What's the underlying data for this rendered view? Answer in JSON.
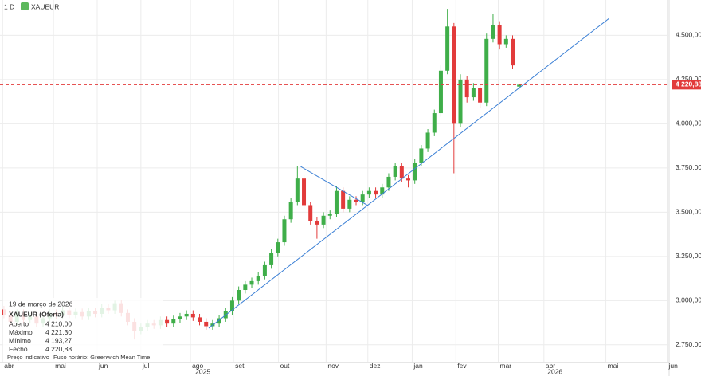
{
  "header": {
    "interval": "1 D",
    "symbol": "XAUEUR"
  },
  "info": {
    "date": "19 de março de 2026",
    "title": "XAUEUR (Oferta)",
    "rows": [
      [
        "Aberto",
        "4 210,00"
      ],
      [
        "Máximo",
        "4 221,30"
      ],
      [
        "Mínimo",
        "4 193,27"
      ],
      [
        "Fecho",
        "4 220,88"
      ]
    ],
    "footer": [
      "Preço indicativo",
      "Fuso horário: Greenwich Mean Time"
    ]
  },
  "chart_data": {
    "type": "candlestick",
    "up_color": "#3fae49",
    "down_color": "#e23b3b",
    "open": [
      2950,
      2920,
      2880,
      2930,
      2890,
      2910,
      2870,
      2900,
      2930,
      2915,
      2945,
      2920,
      2935,
      2910,
      2940,
      2925,
      2960,
      2945,
      2985,
      2930,
      2880,
      2830,
      2850,
      2870,
      2860,
      2890,
      2870,
      2895,
      2910,
      2925,
      2905,
      2880,
      2855,
      2870,
      2900,
      2940,
      3000,
      3060,
      3090,
      3110,
      3140,
      3200,
      3270,
      3330,
      3460,
      3560,
      3690,
      3540,
      3450,
      3430,
      3480,
      3490,
      3620,
      3520,
      3570,
      3560,
      3600,
      3620,
      3600,
      3640,
      3700,
      3760,
      3690,
      3680,
      3780,
      3860,
      3950,
      4060,
      4300,
      4550,
      4000,
      4250,
      4150,
      4200,
      4120,
      4480,
      4560,
      4450,
      4480,
      4210
    ],
    "high": [
      2970,
      2940,
      2950,
      2950,
      2930,
      2930,
      2920,
      2950,
      2950,
      2965,
      2965,
      2955,
      2955,
      2960,
      2960,
      2980,
      2980,
      3000,
      3005,
      2950,
      2900,
      2870,
      2890,
      2890,
      2910,
      2910,
      2915,
      2930,
      2945,
      2945,
      2925,
      2900,
      2890,
      2920,
      2960,
      3020,
      3080,
      3110,
      3130,
      3160,
      3220,
      3290,
      3350,
      3480,
      3580,
      3760,
      3710,
      3560,
      3470,
      3500,
      3510,
      3650,
      3640,
      3590,
      3590,
      3620,
      3640,
      3640,
      3660,
      3720,
      3780,
      3780,
      3710,
      3800,
      3880,
      3970,
      4080,
      4330,
      4650,
      4570,
      4280,
      4270,
      4230,
      4220,
      4510,
      4620,
      4580,
      4500,
      4500,
      4221.3
    ],
    "low": [
      2900,
      2860,
      2860,
      2870,
      2870,
      2850,
      2850,
      2880,
      2895,
      2895,
      2900,
      2900,
      2890,
      2890,
      2905,
      2905,
      2925,
      2925,
      2910,
      2860,
      2780,
      2810,
      2830,
      2840,
      2840,
      2850,
      2850,
      2875,
      2890,
      2885,
      2860,
      2835,
      2835,
      2850,
      2880,
      2920,
      2980,
      3040,
      3070,
      3090,
      3120,
      3180,
      3250,
      3310,
      3440,
      3540,
      3520,
      3430,
      3350,
      3410,
      3460,
      3470,
      3500,
      3500,
      3540,
      3540,
      3580,
      3580,
      3580,
      3620,
      3680,
      3670,
      3640,
      3660,
      3760,
      3840,
      3930,
      4040,
      4280,
      3720,
      3980,
      4120,
      4130,
      4090,
      4100,
      4460,
      4420,
      4430,
      4310,
      4193.27
    ],
    "close": [
      2920,
      2880,
      2930,
      2890,
      2910,
      2870,
      2900,
      2930,
      2915,
      2945,
      2920,
      2935,
      2910,
      2940,
      2925,
      2960,
      2945,
      2985,
      2930,
      2880,
      2830,
      2850,
      2870,
      2860,
      2890,
      2870,
      2895,
      2910,
      2925,
      2905,
      2880,
      2855,
      2870,
      2900,
      2940,
      3000,
      3060,
      3090,
      3110,
      3140,
      3200,
      3270,
      3330,
      3460,
      3560,
      3690,
      3540,
      3450,
      3430,
      3480,
      3490,
      3620,
      3520,
      3570,
      3560,
      3600,
      3620,
      3600,
      3640,
      3700,
      3760,
      3690,
      3680,
      3780,
      3860,
      3950,
      4060,
      4300,
      4550,
      4000,
      4250,
      4150,
      4200,
      4120,
      4480,
      4560,
      4450,
      4480,
      4330,
      4220.88
    ],
    "xlim": [
      -0.6,
      102
    ],
    "ylim": [
      2650,
      4700
    ],
    "yticks": [
      {
        "value": 2750,
        "label": "2.750,00"
      },
      {
        "value": 3000,
        "label": "3.000,00"
      },
      {
        "value": 3250,
        "label": "3.250,00"
      },
      {
        "value": 3500,
        "label": "3.500,00"
      },
      {
        "value": 3750,
        "label": "3.750,00"
      },
      {
        "value": 4000,
        "label": "4.000,00"
      },
      {
        "value": 4250,
        "label": "4.250,00"
      },
      {
        "value": 4500,
        "label": "4.500,00"
      }
    ],
    "xticks": [
      {
        "value": -0.2,
        "label": "abr"
      },
      {
        "value": 7.6,
        "label": "mai"
      },
      {
        "value": 14.3,
        "label": "jun"
      },
      {
        "value": 21,
        "label": "jul"
      },
      {
        "value": 28.6,
        "label": "ago"
      },
      {
        "value": 35.2,
        "label": "set"
      },
      {
        "value": 42.1,
        "label": "out"
      },
      {
        "value": 49.4,
        "label": "nov"
      },
      {
        "value": 55.8,
        "label": "dez"
      },
      {
        "value": 62.6,
        "label": "jan"
      },
      {
        "value": 69.3,
        "label": "fev"
      },
      {
        "value": 75.8,
        "label": "mar"
      },
      {
        "value": 82.8,
        "label": "abr"
      },
      {
        "value": 92.3,
        "label": "mai"
      },
      {
        "value": 101.7,
        "label": "jun"
      }
    ],
    "year_labels": [
      {
        "value": 30.5,
        "label": "2025"
      },
      {
        "value": 84.5,
        "label": "2026"
      }
    ],
    "current_price": {
      "value": 4220.88,
      "label": "4 220,88",
      "color": "#e23b3b"
    },
    "trendlines": [
      {
        "color": "#3a7fd5",
        "x": [
          31.4,
          92.8
        ],
        "y": [
          2844,
          4596
        ]
      },
      {
        "color": "#3a7fd5",
        "x": [
          45.5,
          55.8
        ],
        "y": [
          3758,
          3538
        ]
      }
    ]
  }
}
